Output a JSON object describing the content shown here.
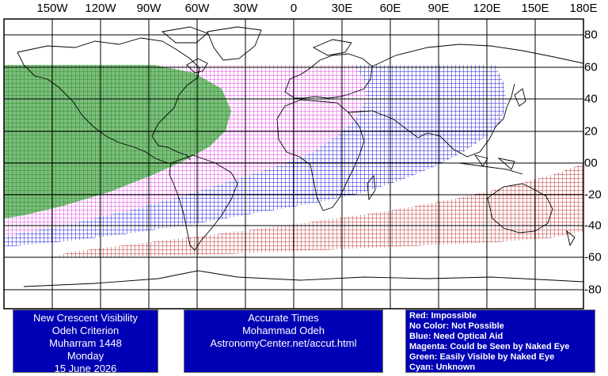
{
  "map": {
    "longitude_labels": [
      "150W",
      "120W",
      "90W",
      "60W",
      "30W",
      "0",
      "30E",
      "60E",
      "90E",
      "120E",
      "150E",
      "180E"
    ],
    "latitude_labels": [
      "80",
      "60",
      "40",
      "20",
      "00",
      "-20",
      "-40",
      "-60",
      "-80"
    ],
    "longitude_values": [
      -150,
      -120,
      -90,
      -60,
      -30,
      0,
      30,
      60,
      90,
      120,
      150,
      180
    ],
    "latitude_values": [
      80,
      60,
      40,
      20,
      0,
      -20,
      -40,
      -60,
      -80
    ],
    "projection": "equirectangular",
    "grid": true,
    "zones": [
      {
        "name": "Green",
        "color": "#2f8a2f",
        "meaning": "Easily Visible by Naked Eye"
      },
      {
        "name": "Magenta",
        "color": "#e040e0",
        "meaning": "Could be Seen by Naked Eye"
      },
      {
        "name": "Blue",
        "color": "#1a1ad8",
        "meaning": "Need Optical Aid"
      },
      {
        "name": "Red",
        "color": "#c03030",
        "meaning": "Impossible"
      }
    ]
  },
  "box_left": {
    "lines": [
      "New Crescent Visibility",
      "Odeh Criterion",
      "Muharram 1448",
      "Monday",
      "15 June 2026"
    ]
  },
  "box_middle": {
    "lines": [
      "Accurate Times",
      "Mohammad Odeh",
      "AstronomyCenter.net/accut.html"
    ]
  },
  "legend": {
    "lines": [
      "Red: Impossible",
      "No Color: Not Possible",
      "Blue: Need Optical Aid",
      "Magenta: Could be Seen by Naked Eye",
      "Green: Easily Visible by Naked Eye",
      "Cyan: Unknown"
    ]
  }
}
